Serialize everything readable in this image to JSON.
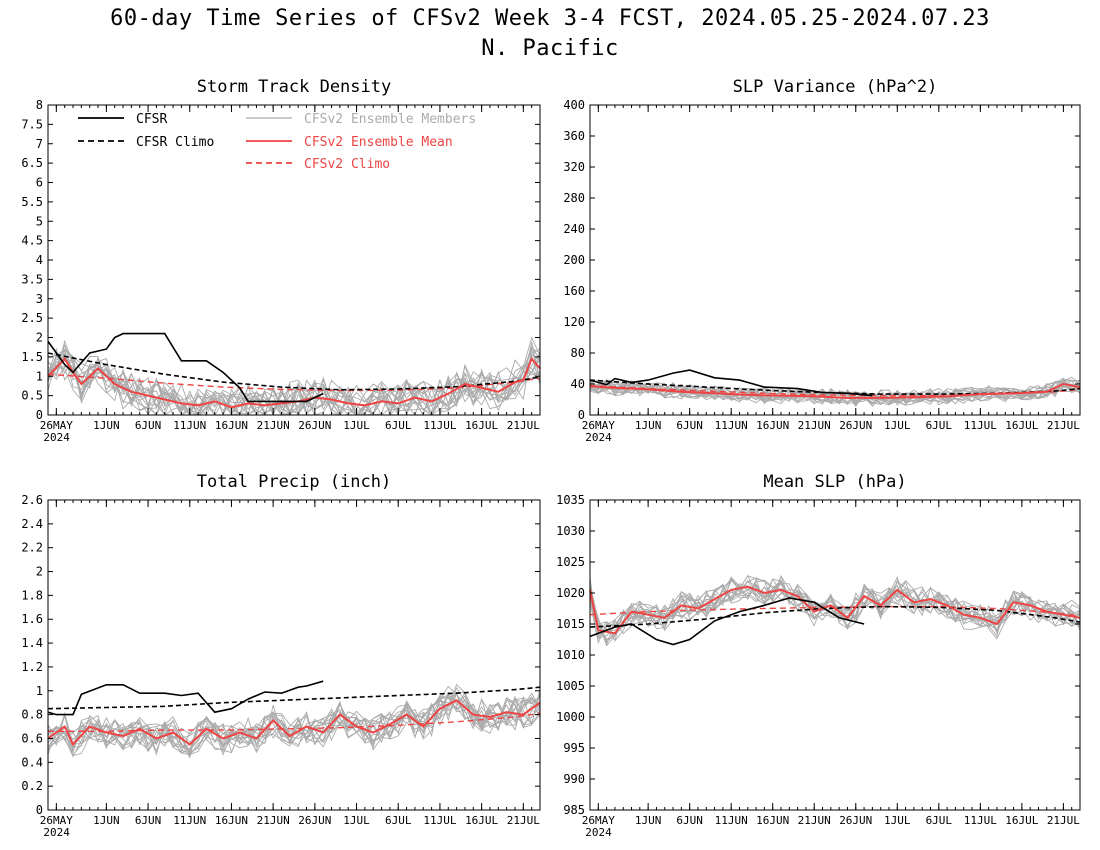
{
  "figure": {
    "title_line1": "60-day Time Series of CFSv2 Week 3-4 FCST, 2024.05.25-2024.07.23",
    "title_line2": "N. Pacific"
  },
  "colors": {
    "cfsr": "#000000",
    "ensemble_members": "#aaaaaa",
    "ensemble_mean": "#ee4444",
    "cfsv2_climo": "#ee4444"
  },
  "legend": {
    "entries": [
      {
        "label": "CFSR",
        "style": "solid",
        "color": "#000000"
      },
      {
        "label": "CFSR Climo",
        "style": "dashed",
        "color": "#000000"
      },
      {
        "label": "CFSv2 Ensemble Members",
        "style": "solid",
        "color": "#aaaaaa"
      },
      {
        "label": "CFSv2 Ensemble Mean",
        "style": "solid",
        "color": "#ee4444"
      },
      {
        "label": "CFSv2 Climo",
        "style": "dashed",
        "color": "#ee4444"
      }
    ]
  },
  "x_ticks": [
    {
      "day": 1,
      "label": "26MAY",
      "sublabel": "2024"
    },
    {
      "day": 7,
      "label": "1JUN"
    },
    {
      "day": 12,
      "label": "6JUN"
    },
    {
      "day": 17,
      "label": "11JUN"
    },
    {
      "day": 22,
      "label": "16JUN"
    },
    {
      "day": 27,
      "label": "21JUN"
    },
    {
      "day": 32,
      "label": "26JUN"
    },
    {
      "day": 37,
      "label": "1JUL"
    },
    {
      "day": 42,
      "label": "6JUL"
    },
    {
      "day": 47,
      "label": "11JUL"
    },
    {
      "day": 52,
      "label": "16JUL"
    },
    {
      "day": 57,
      "label": "21JUL"
    }
  ],
  "chart_data": [
    {
      "type": "line",
      "title": "Storm Track Density",
      "x_range": [
        "2024-05-25",
        "2024-07-23"
      ],
      "ylim": [
        0,
        8
      ],
      "yticks": [
        "0",
        "0.5",
        "1",
        "1.5",
        "2",
        "2.5",
        "3",
        "3.5",
        "4",
        "4.5",
        "5",
        "5.5",
        "6",
        "6.5",
        "7",
        "7.5",
        "8"
      ],
      "series": [
        {
          "name": "CFSR",
          "dates": [
            "2024-05-25",
            "2024-05-27",
            "2024-05-28",
            "2024-05-30",
            "2024-06-01",
            "2024-06-02",
            "2024-06-03",
            "2024-06-04",
            "2024-06-08",
            "2024-06-10",
            "2024-06-13",
            "2024-06-15",
            "2024-06-17",
            "2024-06-18",
            "2024-06-20",
            "2024-06-25",
            "2024-06-27"
          ],
          "values": [
            1.9,
            1.3,
            1.1,
            1.6,
            1.7,
            2.0,
            2.1,
            2.1,
            2.1,
            1.4,
            1.4,
            1.1,
            0.7,
            0.35,
            0.35,
            0.35,
            0.55
          ]
        },
        {
          "name": "CFSR Climo",
          "dates": [
            "2024-05-25",
            "2024-06-01",
            "2024-06-08",
            "2024-06-15",
            "2024-06-22",
            "2024-06-29",
            "2024-07-06",
            "2024-07-13",
            "2024-07-20",
            "2024-07-23"
          ],
          "values": [
            1.6,
            1.3,
            1.05,
            0.85,
            0.72,
            0.65,
            0.67,
            0.73,
            0.87,
            0.98
          ]
        },
        {
          "name": "CFSv2 Ensemble Mean",
          "dates": [
            "2024-05-25",
            "2024-05-27",
            "2024-05-28",
            "2024-05-29",
            "2024-05-31",
            "2024-06-02",
            "2024-06-04",
            "2024-06-06",
            "2024-06-08",
            "2024-06-10",
            "2024-06-12",
            "2024-06-14",
            "2024-06-16",
            "2024-06-18",
            "2024-06-20",
            "2024-06-22",
            "2024-06-24",
            "2024-06-26",
            "2024-06-28",
            "2024-06-30",
            "2024-07-02",
            "2024-07-04",
            "2024-07-06",
            "2024-07-08",
            "2024-07-10",
            "2024-07-12",
            "2024-07-14",
            "2024-07-16",
            "2024-07-18",
            "2024-07-20",
            "2024-07-21",
            "2024-07-22",
            "2024-07-23"
          ],
          "values": [
            1.0,
            1.45,
            1.1,
            0.8,
            1.2,
            0.8,
            0.6,
            0.5,
            0.4,
            0.3,
            0.25,
            0.35,
            0.2,
            0.3,
            0.25,
            0.3,
            0.35,
            0.45,
            0.4,
            0.3,
            0.25,
            0.35,
            0.3,
            0.45,
            0.35,
            0.55,
            0.8,
            0.7,
            0.6,
            0.85,
            0.9,
            1.45,
            1.2
          ]
        },
        {
          "name": "CFSv2 Climo",
          "dates": [
            "2024-05-25",
            "2024-06-01",
            "2024-06-08",
            "2024-06-15",
            "2024-06-22",
            "2024-06-29",
            "2024-07-06",
            "2024-07-13",
            "2024-07-20",
            "2024-07-23"
          ],
          "values": [
            1.05,
            0.95,
            0.82,
            0.72,
            0.66,
            0.63,
            0.64,
            0.7,
            0.85,
            0.95
          ]
        }
      ],
      "ensemble_members": {
        "count": 16,
        "spread": 0.45,
        "min": 0
      }
    },
    {
      "type": "line",
      "title": "SLP Variance (hPa^2)",
      "x_range": [
        "2024-05-25",
        "2024-07-23"
      ],
      "ylim": [
        0,
        400
      ],
      "yticks": [
        "0",
        "40",
        "80",
        "120",
        "160",
        "200",
        "240",
        "280",
        "320",
        "360",
        "400"
      ],
      "series": [
        {
          "name": "CFSR",
          "dates": [
            "2024-05-25",
            "2024-05-27",
            "2024-05-28",
            "2024-05-30",
            "2024-06-01",
            "2024-06-04",
            "2024-06-06",
            "2024-06-09",
            "2024-06-12",
            "2024-06-15",
            "2024-06-19",
            "2024-06-22",
            "2024-06-25",
            "2024-06-28"
          ],
          "values": [
            45,
            39,
            47,
            42,
            45,
            54,
            58,
            48,
            45,
            36,
            34,
            29,
            28,
            25
          ]
        },
        {
          "name": "CFSR Climo",
          "dates": [
            "2024-05-25",
            "2024-06-01",
            "2024-06-08",
            "2024-06-15",
            "2024-06-22",
            "2024-06-29",
            "2024-07-06",
            "2024-07-13",
            "2024-07-20",
            "2024-07-23"
          ],
          "values": [
            45,
            40,
            36,
            32,
            29,
            27,
            27,
            28,
            31,
            34
          ]
        },
        {
          "name": "CFSv2 Ensemble Mean",
          "dates": [
            "2024-05-25",
            "2024-05-28",
            "2024-06-01",
            "2024-06-05",
            "2024-06-09",
            "2024-06-13",
            "2024-06-17",
            "2024-06-21",
            "2024-06-25",
            "2024-06-29",
            "2024-07-03",
            "2024-07-07",
            "2024-07-11",
            "2024-07-15",
            "2024-07-19",
            "2024-07-21",
            "2024-07-23"
          ],
          "values": [
            37,
            35,
            33,
            30,
            28,
            26,
            25,
            24,
            22,
            22,
            23,
            24,
            27,
            28,
            30,
            40,
            36
          ]
        },
        {
          "name": "CFSv2 Climo",
          "dates": [
            "2024-05-25",
            "2024-06-01",
            "2024-06-08",
            "2024-06-15",
            "2024-06-22",
            "2024-06-29",
            "2024-07-06",
            "2024-07-13",
            "2024-07-20",
            "2024-07-23"
          ],
          "values": [
            38,
            34,
            31,
            28,
            26,
            25,
            25,
            27,
            30,
            33
          ]
        }
      ],
      "ensemble_members": {
        "count": 16,
        "spread": 9,
        "min": 0
      }
    },
    {
      "type": "line",
      "title": "Total Precip (inch)",
      "x_range": [
        "2024-05-25",
        "2024-07-23"
      ],
      "ylim": [
        0,
        2.6
      ],
      "yticks": [
        "0",
        "0.2",
        "0.4",
        "0.6",
        "0.8",
        "1",
        "1.2",
        "1.4",
        "1.6",
        "1.8",
        "2",
        "2.2",
        "2.4",
        "2.6"
      ],
      "series": [
        {
          "name": "CFSR",
          "dates": [
            "2024-05-25",
            "2024-05-26",
            "2024-05-28",
            "2024-05-29",
            "2024-06-01",
            "2024-06-03",
            "2024-06-05",
            "2024-06-08",
            "2024-06-10",
            "2024-06-12",
            "2024-06-14",
            "2024-06-16",
            "2024-06-18",
            "2024-06-20",
            "2024-06-22",
            "2024-06-24",
            "2024-06-25",
            "2024-06-27"
          ],
          "values": [
            0.82,
            0.8,
            0.8,
            0.97,
            1.05,
            1.05,
            0.98,
            0.98,
            0.96,
            0.98,
            0.82,
            0.85,
            0.93,
            0.99,
            0.98,
            1.03,
            1.04,
            1.08
          ]
        },
        {
          "name": "CFSR Climo",
          "dates": [
            "2024-05-25",
            "2024-06-01",
            "2024-06-08",
            "2024-06-15",
            "2024-06-22",
            "2024-06-29",
            "2024-07-06",
            "2024-07-13",
            "2024-07-20",
            "2024-07-23"
          ],
          "values": [
            0.85,
            0.86,
            0.87,
            0.9,
            0.92,
            0.94,
            0.96,
            0.98,
            1.01,
            1.03
          ]
        },
        {
          "name": "CFSv2 Ensemble Mean",
          "dates": [
            "2024-05-25",
            "2024-05-27",
            "2024-05-28",
            "2024-05-30",
            "2024-06-01",
            "2024-06-03",
            "2024-06-05",
            "2024-06-07",
            "2024-06-09",
            "2024-06-11",
            "2024-06-13",
            "2024-06-15",
            "2024-06-17",
            "2024-06-19",
            "2024-06-21",
            "2024-06-23",
            "2024-06-25",
            "2024-06-27",
            "2024-06-29",
            "2024-07-01",
            "2024-07-03",
            "2024-07-05",
            "2024-07-07",
            "2024-07-09",
            "2024-07-11",
            "2024-07-13",
            "2024-07-15",
            "2024-07-17",
            "2024-07-19",
            "2024-07-21",
            "2024-07-23"
          ],
          "values": [
            0.6,
            0.7,
            0.55,
            0.7,
            0.65,
            0.62,
            0.68,
            0.6,
            0.65,
            0.55,
            0.68,
            0.6,
            0.65,
            0.6,
            0.75,
            0.62,
            0.7,
            0.65,
            0.8,
            0.7,
            0.65,
            0.72,
            0.8,
            0.7,
            0.85,
            0.92,
            0.8,
            0.78,
            0.82,
            0.8,
            0.9
          ]
        },
        {
          "name": "CFSv2 Climo",
          "dates": [
            "2024-05-25",
            "2024-06-01",
            "2024-06-08",
            "2024-06-15",
            "2024-06-22",
            "2024-06-29",
            "2024-07-06",
            "2024-07-13",
            "2024-07-20",
            "2024-07-23"
          ],
          "values": [
            0.66,
            0.66,
            0.67,
            0.67,
            0.68,
            0.69,
            0.71,
            0.74,
            0.78,
            0.81
          ]
        }
      ],
      "ensemble_members": {
        "count": 16,
        "spread": 0.12,
        "min": 0
      }
    },
    {
      "type": "line",
      "title": "Mean SLP (hPa)",
      "x_range": [
        "2024-05-25",
        "2024-07-23"
      ],
      "ylim": [
        985,
        1035
      ],
      "yticks": [
        "985",
        "990",
        "995",
        "1000",
        "1005",
        "1010",
        "1015",
        "1020",
        "1025",
        "1030",
        "1035"
      ],
      "series": [
        {
          "name": "CFSR",
          "dates": [
            "2024-05-25",
            "2024-05-28",
            "2024-05-30",
            "2024-06-02",
            "2024-06-04",
            "2024-06-06",
            "2024-06-09",
            "2024-06-12",
            "2024-06-15",
            "2024-06-18",
            "2024-06-21",
            "2024-06-24",
            "2024-06-27"
          ],
          "values": [
            1013.0,
            1014.5,
            1015.0,
            1012.5,
            1011.7,
            1012.5,
            1015.5,
            1017.0,
            1018.0,
            1019.2,
            1018.5,
            1016.0,
            1015.0
          ]
        },
        {
          "name": "CFSR Climo",
          "dates": [
            "2024-05-25",
            "2024-06-01",
            "2024-06-08",
            "2024-06-15",
            "2024-06-22",
            "2024-06-29",
            "2024-07-06",
            "2024-07-13",
            "2024-07-20",
            "2024-07-23"
          ],
          "values": [
            1014.5,
            1015.0,
            1015.8,
            1016.8,
            1017.5,
            1017.8,
            1017.7,
            1017.2,
            1016.0,
            1015.3
          ]
        },
        {
          "name": "CFSv2 Ensemble Mean",
          "dates": [
            "2024-05-25",
            "2024-05-26",
            "2024-05-28",
            "2024-05-30",
            "2024-06-01",
            "2024-06-03",
            "2024-06-05",
            "2024-06-07",
            "2024-06-09",
            "2024-06-11",
            "2024-06-13",
            "2024-06-15",
            "2024-06-17",
            "2024-06-19",
            "2024-06-21",
            "2024-06-23",
            "2024-06-25",
            "2024-06-27",
            "2024-06-29",
            "2024-07-01",
            "2024-07-03",
            "2024-07-05",
            "2024-07-07",
            "2024-07-09",
            "2024-07-11",
            "2024-07-13",
            "2024-07-15",
            "2024-07-17",
            "2024-07-19",
            "2024-07-21",
            "2024-07-23"
          ],
          "values": [
            1020.5,
            1014.0,
            1013.5,
            1017.0,
            1016.5,
            1016.0,
            1018.0,
            1017.5,
            1019.0,
            1020.5,
            1021.0,
            1020.0,
            1020.5,
            1019.5,
            1017.0,
            1018.0,
            1016.0,
            1019.5,
            1018.0,
            1020.5,
            1018.5,
            1019.0,
            1018.0,
            1016.5,
            1016.0,
            1015.0,
            1018.5,
            1018.0,
            1017.0,
            1016.5,
            1016.0
          ]
        },
        {
          "name": "CFSv2 Climo",
          "dates": [
            "2024-05-25",
            "2024-06-01",
            "2024-06-08",
            "2024-06-15",
            "2024-06-22",
            "2024-06-29",
            "2024-07-06",
            "2024-07-13",
            "2024-07-20",
            "2024-07-23"
          ],
          "values": [
            1016.5,
            1017.0,
            1017.3,
            1017.5,
            1017.7,
            1017.8,
            1017.8,
            1017.5,
            1016.8,
            1016.3
          ]
        }
      ],
      "ensemble_members": {
        "count": 16,
        "spread": 2.0,
        "min": 985
      }
    }
  ]
}
